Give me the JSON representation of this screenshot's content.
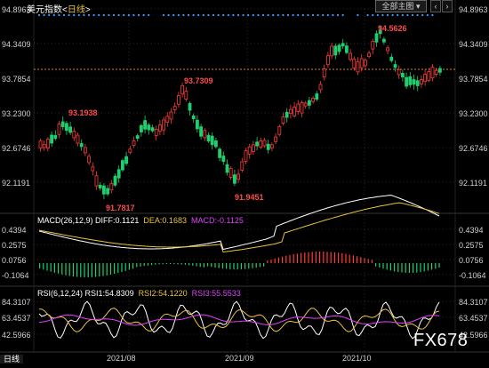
{
  "header": {
    "title_prefix": "美元指数<",
    "title_period": "日线",
    "title_suffix": ">",
    "dropdown_label": "全部主图 ▾",
    "prev_symbol": "‹",
    "next_symbol": "›"
  },
  "price_axis": {
    "labels": [
      "94.8963",
      "94.3409",
      "93.7854",
      "93.2300",
      "92.6746",
      "92.1191"
    ]
  },
  "annotations": {
    "high_1": "93.1938",
    "low_1": "91.7817",
    "high_2": "93.7309",
    "low_2": "91.9451",
    "high_3": "94.5626"
  },
  "macd": {
    "label": "MACD(26,12,9)",
    "diff": "DIFF:0.1121",
    "dea": "DEA:0.1683",
    "macd": "MACD:-0.1125",
    "axis": [
      "0.4394",
      "0.2575",
      "0.0756",
      "-0.1064"
    ]
  },
  "rsi": {
    "label": "RSI(6,12,24)",
    "rsi1": "RSI1:54.8309",
    "rsi2": "RSI2:54.1220",
    "rsi3": "RSI3:55.5533",
    "axis": [
      "84.3107",
      "63.4537",
      "42.5966"
    ]
  },
  "time_axis": {
    "labels": [
      "2021/08",
      "2021/09",
      "2021/10"
    ]
  },
  "footer": {
    "tab_label": "日线",
    "watermark": "FX678"
  },
  "colors": {
    "up": "#ff3b3b",
    "down": "#1fcf6f",
    "label_red": "#ff4d4d",
    "yellow": "#e9c33c",
    "magenta": "#e040fb",
    "white": "#ffffff",
    "grid": "#2a2a2a",
    "ref_line": "#d98a1e"
  }
}
